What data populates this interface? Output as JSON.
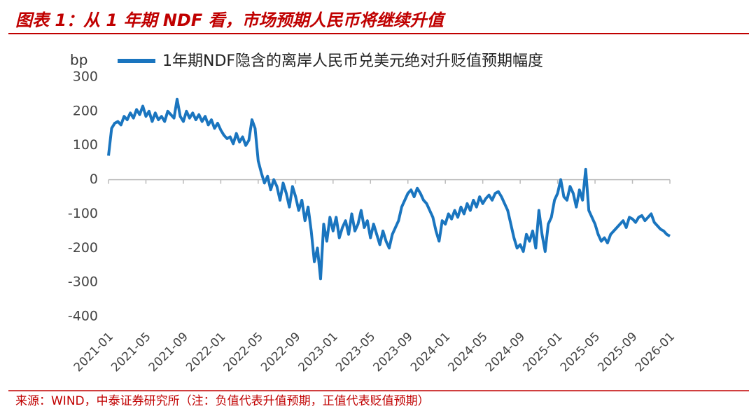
{
  "chart_data": {
    "type": "line",
    "title": "图表 1：从 1 年期 NDF 看，市场预期人民币将继续升值",
    "source": "来源：WIND，中泰证券研究所（注：负值代表升值预期，正值代表贬值预期）",
    "y_label": "bp",
    "ylim": [
      -400,
      300
    ],
    "yticks": [
      300,
      200,
      100,
      0,
      -100,
      -200,
      -300,
      -400
    ],
    "categories": [
      "2021-01",
      null,
      null,
      null,
      null,
      null,
      null,
      null,
      null,
      null,
      null,
      null,
      "2021-05",
      null,
      null,
      null,
      null,
      null,
      null,
      null,
      null,
      null,
      null,
      null,
      "2021-09",
      null,
      null,
      null,
      null,
      null,
      null,
      null,
      null,
      null,
      null,
      null,
      "2022-01",
      null,
      null,
      null,
      null,
      null,
      null,
      null,
      null,
      null,
      null,
      null,
      "2022-05",
      null,
      null,
      null,
      null,
      null,
      null,
      null,
      null,
      null,
      null,
      null,
      "2022-09",
      null,
      null,
      null,
      null,
      null,
      null,
      null,
      null,
      null,
      null,
      null,
      "2023-01",
      null,
      null,
      null,
      null,
      null,
      null,
      null,
      null,
      null,
      null,
      null,
      "2023-05",
      null,
      null,
      null,
      null,
      null,
      null,
      null,
      null,
      null,
      null,
      null,
      "2023-09",
      null,
      null,
      null,
      null,
      null,
      null,
      null,
      null,
      null,
      null,
      null,
      "2024-01",
      null,
      null,
      null,
      null,
      null,
      null,
      null,
      null,
      null,
      null,
      null,
      "2024-05",
      null,
      null,
      null,
      null,
      null,
      null,
      null,
      null,
      null,
      null,
      null,
      "2024-09",
      null,
      null,
      null,
      null,
      null,
      null,
      null,
      null,
      null,
      null,
      null,
      "2025-01",
      null,
      null,
      null,
      null,
      null,
      null,
      null,
      null,
      null,
      null,
      null,
      "2025-05",
      null,
      null,
      null,
      null,
      null,
      null,
      null,
      null,
      null,
      null,
      null,
      "2025-09",
      null,
      null,
      null,
      null,
      null,
      null,
      null,
      null,
      null,
      null,
      null,
      "2026-01"
    ],
    "series": [
      {
        "name": "1年期NDF隐含的离岸人民币兑美元绝对升贬值预期幅度",
        "color": "#1a75bf",
        "values": [
          70,
          150,
          165,
          170,
          160,
          185,
          175,
          195,
          180,
          205,
          190,
          215,
          185,
          200,
          170,
          195,
          175,
          185,
          170,
          200,
          190,
          180,
          235,
          185,
          170,
          200,
          180,
          195,
          175,
          190,
          170,
          185,
          160,
          175,
          150,
          165,
          145,
          130,
          120,
          125,
          105,
          135,
          110,
          125,
          100,
          115,
          175,
          150,
          55,
          20,
          -10,
          10,
          -30,
          0,
          -20,
          -60,
          -10,
          -40,
          -80,
          -20,
          -50,
          -90,
          -60,
          -120,
          -80,
          -150,
          -240,
          -200,
          -290,
          -130,
          -180,
          -110,
          -150,
          -110,
          -170,
          -140,
          -120,
          -160,
          -100,
          -150,
          -130,
          -90,
          -140,
          -120,
          -170,
          -130,
          -160,
          -190,
          -150,
          -180,
          -200,
          -160,
          -140,
          -120,
          -80,
          -60,
          -40,
          -30,
          -50,
          -25,
          -40,
          -60,
          -70,
          -90,
          -110,
          -150,
          -180,
          -120,
          -130,
          -100,
          -115,
          -90,
          -110,
          -80,
          -100,
          -70,
          -90,
          -60,
          -80,
          -50,
          -70,
          -55,
          -45,
          -60,
          -40,
          -35,
          -50,
          -70,
          -90,
          -130,
          -170,
          -200,
          -190,
          -210,
          -160,
          -180,
          -150,
          -200,
          -90,
          -160,
          -210,
          -130,
          -110,
          -60,
          -40,
          0,
          -50,
          -60,
          -20,
          -40,
          -80,
          -30,
          -60,
          30,
          -90,
          -110,
          -130,
          -160,
          -180,
          -170,
          -185,
          -160,
          -150,
          -140,
          -130,
          -120,
          -140,
          -110,
          -115,
          -125,
          -110,
          -105,
          -120,
          -110,
          -100,
          -125,
          -135,
          -145,
          -150,
          -160,
          -165
        ]
      }
    ]
  }
}
